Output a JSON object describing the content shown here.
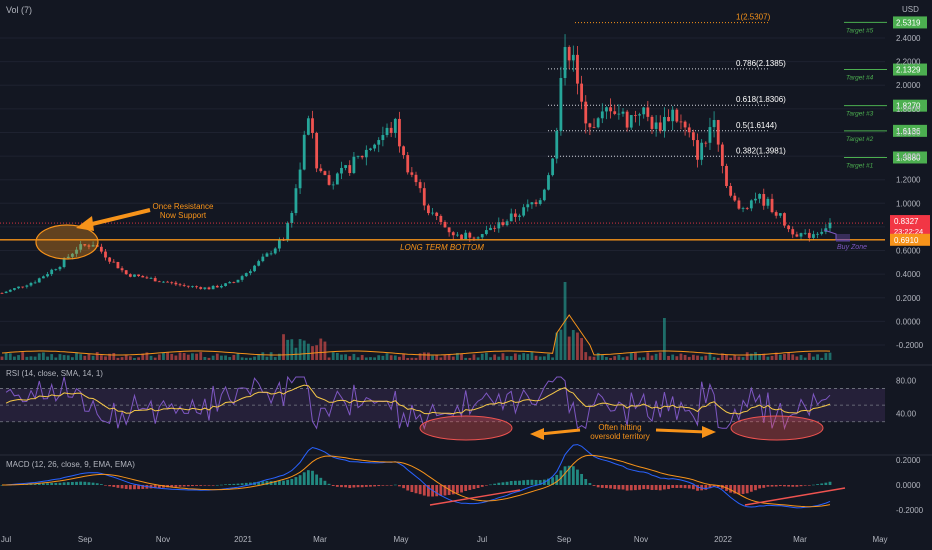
{
  "top_label": "Vol (7)",
  "currency": "USD",
  "colors": {
    "background": "#131722",
    "up": "#26a69a",
    "down": "#ef5350",
    "orange": "#f7931a",
    "rsi_line": "#7e57c2",
    "rsi_band": "#2a2340",
    "target": "#4caf50",
    "price_badge": "#f23645",
    "grid": "#1e2230"
  },
  "chart_data": {
    "type": "candlestick",
    "x_ticks": [
      "Jul",
      "Sep",
      "Nov",
      "2021",
      "Mar",
      "May",
      "Jul",
      "Sep",
      "Nov",
      "2022",
      "Mar",
      "May"
    ],
    "price_axis": {
      "ticks": [
        "2.4000",
        "2.2000",
        "2.0000",
        "1.8000",
        "1.6000",
        "1.4000",
        "1.2000",
        "1.0000",
        "0.8000",
        "0.6000",
        "0.4000",
        "0.2000",
        "0.0000",
        "-0.2000"
      ],
      "ylim": [
        -0.28,
        2.6
      ]
    },
    "current_price": "0.8327",
    "countdown": "23:22:24",
    "long_term_bottom": "0.6910",
    "long_term_bottom_label": "LONG TERM BOTTOM",
    "fibonacci": [
      {
        "label": "1(2.5307)",
        "value": 2.5307
      },
      {
        "label": "0.786(2.1385)",
        "value": 2.1385
      },
      {
        "label": "0.618(1.8306)",
        "value": 1.8306
      },
      {
        "label": "0.5(1.6144)",
        "value": 1.6144
      },
      {
        "label": "0.382(1.3981)",
        "value": 1.3981
      }
    ],
    "targets": [
      {
        "name": "Target #5",
        "value": "2.5319"
      },
      {
        "name": "Target #4",
        "value": "2.1329"
      },
      {
        "name": "Target #3",
        "value": "1.8270"
      },
      {
        "name": "Target #2",
        "value": "1.6136"
      },
      {
        "name": "Target #1",
        "value": "1.3880"
      }
    ],
    "annotations": {
      "resistance": "Once Resistance\nNow Support",
      "buy_zone": "Buy Zone",
      "oversold": "Often hitting\noversold territory"
    },
    "price_path": [
      [
        0,
        0.24
      ],
      [
        8,
        0.34
      ],
      [
        14,
        0.48
      ],
      [
        18,
        0.62
      ],
      [
        22,
        0.66
      ],
      [
        25,
        0.56
      ],
      [
        30,
        0.4
      ],
      [
        36,
        0.36
      ],
      [
        44,
        0.3
      ],
      [
        50,
        0.28
      ],
      [
        56,
        0.33
      ],
      [
        60,
        0.44
      ],
      [
        64,
        0.56
      ],
      [
        68,
        0.7
      ],
      [
        70,
        0.95
      ],
      [
        72,
        1.3
      ],
      [
        74,
        1.76
      ],
      [
        76,
        1.3
      ],
      [
        80,
        1.18
      ],
      [
        85,
        1.34
      ],
      [
        90,
        1.52
      ],
      [
        95,
        1.66
      ],
      [
        97,
        1.38
      ],
      [
        100,
        1.18
      ],
      [
        103,
        0.94
      ],
      [
        107,
        0.8
      ],
      [
        110,
        0.72
      ],
      [
        116,
        0.74
      ],
      [
        120,
        0.82
      ],
      [
        126,
        0.94
      ],
      [
        130,
        1.06
      ],
      [
        132,
        1.24
      ],
      [
        134,
        1.6
      ],
      [
        136,
        2.4
      ],
      [
        138,
        2.2
      ],
      [
        140,
        1.8
      ],
      [
        143,
        1.62
      ],
      [
        147,
        1.84
      ],
      [
        151,
        1.7
      ],
      [
        154,
        1.8
      ],
      [
        158,
        1.64
      ],
      [
        162,
        1.78
      ],
      [
        166,
        1.56
      ],
      [
        168,
        1.42
      ],
      [
        170,
        1.52
      ],
      [
        172,
        1.78
      ],
      [
        174,
        1.32
      ],
      [
        176,
        1.06
      ],
      [
        178,
        0.94
      ],
      [
        182,
        1.06
      ],
      [
        185,
        1.0
      ],
      [
        188,
        0.88
      ],
      [
        190,
        0.78
      ],
      [
        194,
        0.72
      ],
      [
        197,
        0.76
      ],
      [
        200,
        0.83
      ]
    ],
    "volume": {
      "spike_day": 136,
      "note": "spikes near early 2021 and Sep"
    },
    "rsi": {
      "label": "RSI (14, close, SMA, 14, 1)",
      "ticks": [
        "80.00",
        "40.00"
      ],
      "band": [
        30,
        70
      ]
    },
    "macd": {
      "label": "MACD (12, 26, close, 9, EMA, EMA)",
      "ticks": [
        "0.2000",
        "0.0000",
        "-0.2000"
      ]
    }
  }
}
